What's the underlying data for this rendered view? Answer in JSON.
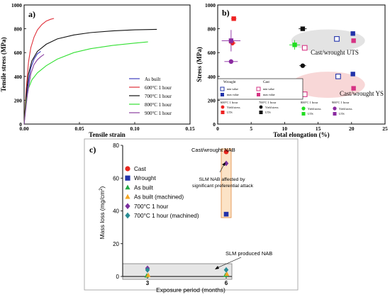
{
  "chart_data": [
    {
      "type": "line",
      "panel_label": "a)",
      "xlabel": "Tensile strain",
      "ylabel": "Tensile stress (MPa)",
      "xlim": [
        0,
        0.15
      ],
      "ylim": [
        0,
        1000
      ],
      "xticks": [
        0.0,
        0.05,
        0.1,
        0.15
      ],
      "xtick_labels": [
        "0.00",
        "0.05",
        "0.10",
        "0.15"
      ],
      "yticks": [
        0,
        200,
        400,
        600,
        800,
        1000
      ],
      "yticks_labels": [
        "0",
        "200",
        "400",
        "600",
        "800",
        "1000"
      ],
      "legend_position": "bottom-right",
      "series": [
        {
          "name": "As built",
          "color": "#3f3fbf",
          "points": [
            [
              0,
              0
            ],
            [
              0.003,
              300
            ],
            [
              0.006,
              470
            ],
            [
              0.009,
              545
            ],
            [
              0.012,
              590
            ],
            [
              0.015,
              610
            ]
          ]
        },
        {
          "name": "600°C 1 hour",
          "color": "#e0303a",
          "points": [
            [
              0,
              0
            ],
            [
              0.002,
              300
            ],
            [
              0.004,
              520
            ],
            [
              0.006,
              640
            ],
            [
              0.009,
              730
            ],
            [
              0.012,
              790
            ],
            [
              0.016,
              835
            ],
            [
              0.02,
              865
            ],
            [
              0.024,
              880
            ],
            [
              0.027,
              887
            ]
          ]
        },
        {
          "name": "700°C 1 hour",
          "color": "#111111",
          "points": [
            [
              0,
              0
            ],
            [
              0.002,
              250
            ],
            [
              0.004,
              420
            ],
            [
              0.007,
              530
            ],
            [
              0.012,
              610
            ],
            [
              0.02,
              670
            ],
            [
              0.03,
              715
            ],
            [
              0.045,
              748
            ],
            [
              0.06,
              768
            ],
            [
              0.08,
              782
            ],
            [
              0.1,
              791
            ],
            [
              0.12,
              795
            ]
          ]
        },
        {
          "name": "800°C 1 hour",
          "color": "#33e033",
          "points": [
            [
              0,
              0
            ],
            [
              0.002,
              200
            ],
            [
              0.004,
              300
            ],
            [
              0.007,
              370
            ],
            [
              0.012,
              430
            ],
            [
              0.02,
              490
            ],
            [
              0.03,
              545
            ],
            [
              0.045,
              600
            ],
            [
              0.06,
              633
            ],
            [
              0.08,
              660
            ],
            [
              0.1,
              680
            ],
            [
              0.112,
              690
            ]
          ]
        },
        {
          "name": "900°C 1 hour",
          "color": "#8a3fa0",
          "points": [
            [
              0,
              0
            ],
            [
              0.003,
              250
            ],
            [
              0.006,
              420
            ],
            [
              0.009,
              500
            ],
            [
              0.012,
              540
            ],
            [
              0.015,
              565
            ],
            [
              0.018,
              585
            ]
          ]
        }
      ]
    },
    {
      "type": "scatter",
      "panel_label": "b)",
      "xlabel": "Total elongation (%)",
      "ylabel": "Stress (MPa)",
      "xlim": [
        0,
        25
      ],
      "ylim": [
        0,
        1000
      ],
      "xticks": [
        0,
        5,
        10,
        15,
        20,
        25
      ],
      "xtick_labels": [
        "0",
        "5",
        "10",
        "15",
        "20",
        "25"
      ],
      "yticks": [
        0,
        200,
        400,
        600,
        800,
        1000
      ],
      "yticks_labels": [
        "0",
        "200",
        "400",
        "600",
        "800",
        "1000"
      ],
      "annotations": [
        "Cast/wrought UTS",
        "Cast/wrought YS"
      ],
      "legend": {
        "wrought_title": "Wrought",
        "cast_title": "Cast",
        "min_label": "min value",
        "max_label": "max value",
        "yield_label": "Yield stress",
        "uts_label": "UTS",
        "groups": [
          "600°C 1 hour",
          "700°C 1 hour",
          "800°C 1 hour",
          "900°C 1 hour"
        ]
      },
      "series": [
        {
          "name": "Wrought min value",
          "color": "#2233aa",
          "marker": "square-open",
          "points": [
            [
              17.8,
              715
            ],
            [
              18.0,
              400
            ]
          ]
        },
        {
          "name": "Wrought max value",
          "color": "#2233aa",
          "marker": "square-filled",
          "points": [
            [
              20.2,
              760
            ],
            [
              20.2,
              420
            ]
          ]
        },
        {
          "name": "Cast min value",
          "color": "#d63384",
          "marker": "square-open",
          "points": [
            [
              13.0,
              640
            ],
            [
              13.0,
              250
            ]
          ]
        },
        {
          "name": "Cast max value",
          "color": "#d63384",
          "marker": "square-filled",
          "points": [
            [
              20.3,
              700
            ],
            [
              20.3,
              300
            ]
          ]
        },
        {
          "name": "600°C 1 hour Yield stress",
          "color": "#ee2222",
          "marker": "circle",
          "points": [
            [
              2.2,
              680
            ]
          ],
          "xerr": 0.5,
          "yerr": 20
        },
        {
          "name": "600°C 1 hour UTS",
          "color": "#ee2222",
          "marker": "square-filled",
          "points": [
            [
              2.4,
              885
            ]
          ],
          "xerr": 0.4,
          "yerr": 10
        },
        {
          "name": "700°C 1 hour Yield stress",
          "color": "#111111",
          "marker": "circle",
          "points": [
            [
              12.7,
              490
            ]
          ],
          "xerr": 0.5,
          "yerr": 15
        },
        {
          "name": "700°C 1 hour UTS",
          "color": "#111111",
          "marker": "square-filled",
          "points": [
            [
              12.7,
              800
            ]
          ],
          "xerr": 0.6,
          "yerr": 10
        },
        {
          "name": "800°C 1 hour Yield stress",
          "color": "#22dd22",
          "marker": "circle",
          "points": [
            [
              11.6,
              350
            ]
          ],
          "xerr": 0.8,
          "yerr": 20
        },
        {
          "name": "800°C 1 hour UTS",
          "color": "#22dd22",
          "marker": "square-filled",
          "points": [
            [
              11.5,
              665
            ]
          ],
          "xerr": 0.8,
          "yerr": 40
        },
        {
          "name": "900°C 1 hour Yield stress",
          "color": "#8a2aa0",
          "marker": "circle",
          "points": [
            [
              2.0,
              525
            ]
          ],
          "xerr": 1.0,
          "yerr": 20
        },
        {
          "name": "900°C 1 hour UTS",
          "color": "#8a2aa0",
          "marker": "square-filled",
          "points": [
            [
              2.0,
              700
            ]
          ],
          "xerr": 1.4,
          "yerr": 90
        }
      ],
      "regions": [
        {
          "label": "Cast/wrought UTS",
          "color": "#d9d9d9",
          "center": [
            16.5,
            700
          ],
          "rx": 5.5,
          "ry": 95
        },
        {
          "label": "Cast/wrought YS",
          "color": "#f5c9c9",
          "center": [
            16.5,
            330
          ],
          "rx": 5.5,
          "ry": 110
        }
      ]
    },
    {
      "type": "scatter",
      "panel_label": "c)",
      "xlabel": "Exposure period (months)",
      "ylabel": "Mass loss (mg/cm²)",
      "ylim": [
        0,
        80
      ],
      "categories": [
        "3",
        "6"
      ],
      "yticks": [
        0,
        20,
        40,
        60,
        80
      ],
      "yticks_labels": [
        "0",
        "20",
        "40",
        "60",
        "80"
      ],
      "legend_position": "left",
      "annotations": [
        "Cast/wrought NAB",
        "SLM NAB affected by significant preferential attack",
        "SLM produced NAB"
      ],
      "series": [
        {
          "name": "Cast",
          "color": "#e8261e",
          "marker": "circle",
          "values": [
            null,
            76
          ]
        },
        {
          "name": "Wrought",
          "color": "#2233aa",
          "marker": "square",
          "values": [
            null,
            38
          ]
        },
        {
          "name": "As built",
          "color": "#22aa44",
          "marker": "triangle",
          "values": [
            0.5,
            0.8
          ]
        },
        {
          "name": "As built (machined)",
          "color": "#f5a623",
          "marker": "triangle",
          "values": [
            0.8,
            1.5
          ]
        },
        {
          "name": "700°C 1 hour",
          "color": "#7b2f9e",
          "marker": "diamond",
          "values": [
            5,
            69
          ]
        },
        {
          "name": "700°C 1 hour (machined)",
          "color": "#2a8c94",
          "marker": "diamond",
          "values": [
            4,
            4
          ]
        }
      ]
    }
  ]
}
